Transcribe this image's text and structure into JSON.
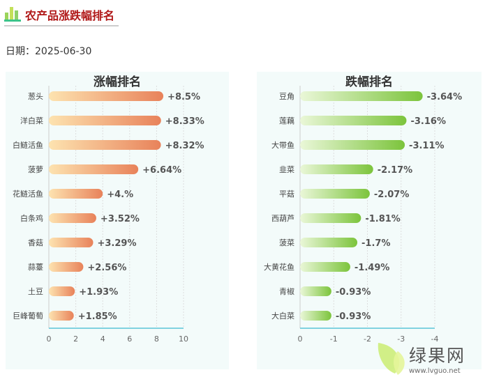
{
  "header": {
    "title": "农产品涨跌幅排名",
    "icon": "bar-chart-icon"
  },
  "date_label": "日期：2025-06-30",
  "watermark": {
    "name": "绿果网",
    "url": "www.lvguo.net"
  },
  "chart_data": [
    {
      "type": "bar",
      "orientation": "horizontal",
      "title": "涨幅排名",
      "categories": [
        "葱头",
        "洋白菜",
        "白鲢活鱼",
        "菠萝",
        "花鲢活鱼",
        "白条鸡",
        "香菇",
        "蒜薹",
        "土豆",
        "巨峰葡萄"
      ],
      "values": [
        8.5,
        8.33,
        8.32,
        6.64,
        4,
        3.52,
        3.29,
        2.56,
        1.93,
        1.85
      ],
      "data_labels": [
        "+8.5%",
        "+8.33%",
        "+8.32%",
        "+6.64%",
        "+4.%",
        "+3.52%",
        "+3.29%",
        "+2.56%",
        "+1.93%",
        "+1.85%"
      ],
      "xlim": [
        0,
        10
      ],
      "xticks": [
        "0",
        "2",
        "4",
        "6",
        "8",
        "10"
      ],
      "grid": true,
      "colors": [
        "#fde3b0",
        "#e8825a"
      ]
    },
    {
      "type": "bar",
      "orientation": "horizontal",
      "title": "跌幅排名",
      "categories": [
        "豆角",
        "莲藕",
        "大带鱼",
        "韭菜",
        "平菇",
        "西葫芦",
        "菠菜",
        "大黄花鱼",
        "青椒",
        "大白菜"
      ],
      "values": [
        -3.64,
        -3.16,
        -3.11,
        -2.17,
        -2.07,
        -1.81,
        -1.7,
        -1.49,
        -0.93,
        -0.93
      ],
      "data_labels": [
        "-3.64%",
        "-3.16%",
        "-3.11%",
        "-2.17%",
        "-2.07%",
        "-1.81%",
        "-1.7%",
        "-1.49%",
        "-0.93%",
        "-0.93%"
      ],
      "xlim": [
        0,
        -4
      ],
      "xticks": [
        "0",
        "-1",
        "-2",
        "-3",
        "-4"
      ],
      "grid": true,
      "colors": [
        "#eaf7d8",
        "#7cc43c"
      ]
    }
  ]
}
